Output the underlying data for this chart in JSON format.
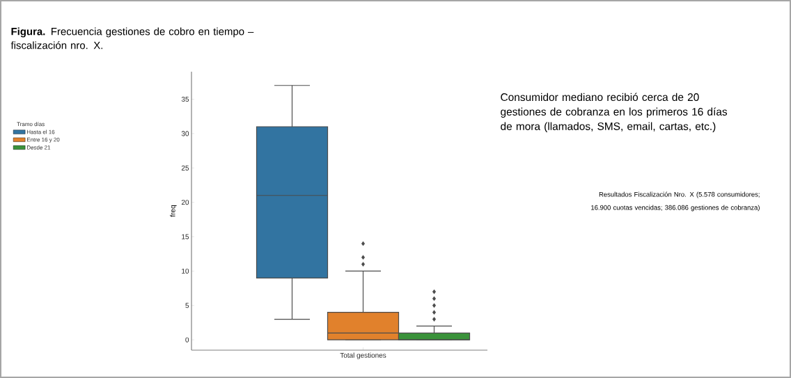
{
  "chart_data": {
    "type": "box",
    "title": "**Figura.** Frecuencia gestiones de cobro en tiempo – fiscalización nro. X.",
    "ylabel": "freq",
    "xlabel": null,
    "legend_title": "Tramo días",
    "legend": "left",
    "categories": [
      "Total gestiones"
    ],
    "series": [
      {
        "name": "Hasta el 16",
        "color": "#3274a1",
        "boxes": [
          {
            "low": 3,
            "q1": 9,
            "median": 21,
            "q3": 31,
            "high": 37
          }
        ]
      },
      {
        "name": "Entre 16 y 20",
        "color": "#e1812c",
        "boxes": [
          {
            "low": 0,
            "q1": 0,
            "median": 1,
            "q3": 4,
            "high": 10,
            "outliers": [
              11,
              12,
              14
            ]
          }
        ]
      },
      {
        "name": "Desde 21",
        "color": "#3a923a",
        "boxes": [
          {
            "low": 0,
            "q1": 0,
            "median": 0,
            "q3": 1,
            "high": 2,
            "outliers": [
              3,
              4,
              5,
              6,
              7
            ]
          }
        ]
      }
    ],
    "ylim": [
      -1.5,
      39
    ],
    "yticks": [
      0,
      5,
      10,
      15,
      20,
      25,
      30,
      35
    ],
    "annotations": [
      "Consumidor mediano recibió cerca de 20 gestiones de cobranza en los primeros 16 días de mora (llamados, SMS, email, cartas, etc.)",
      "Resultados Fiscalización Nro. X (5.578 consumidores; 16.900 cuotas vencidas; 386.086 gestiones de cobranza)"
    ]
  }
}
